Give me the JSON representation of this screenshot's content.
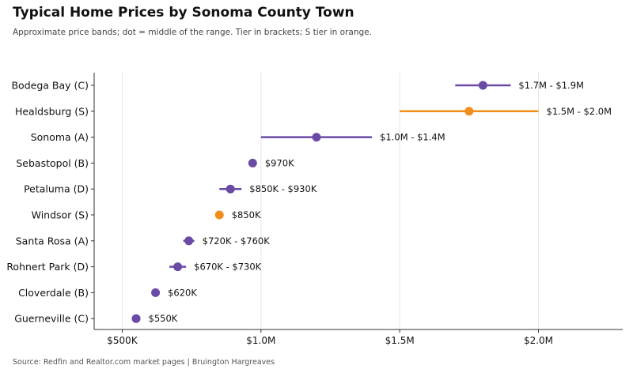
{
  "header": {
    "title": "Typical Home Prices by Sonoma County Town",
    "subtitle": "Approximate price bands; dot = middle of the range. Tier in brackets; S tier in orange."
  },
  "footer": {
    "source": "Source: Redfin and Realtor.com market pages | Bruington Hargreaves"
  },
  "colors": {
    "default": "#6a4aa5",
    "highlight": "#f28e1c",
    "grid": "#e6e6e6",
    "axis": "#333333"
  },
  "chart_data": {
    "type": "range-dot",
    "title": "Typical Home Prices by Sonoma County Town",
    "xlim": [
      400000,
      2300000
    ],
    "xticks": [
      500000,
      1000000,
      1500000,
      2000000
    ],
    "xtick_labels": [
      "$500K",
      "$1.0M",
      "$1.5M",
      "$2.0M"
    ],
    "grid": "vertical",
    "rows": [
      {
        "label": "Bodega Bay (C)",
        "low": 1700000,
        "high": 1900000,
        "mid": 1800000,
        "value_label": "$1.7M - $1.9M",
        "tier": "C"
      },
      {
        "label": "Healdsburg (S)",
        "low": 1500000,
        "high": 2000000,
        "mid": 1750000,
        "value_label": "$1.5M - $2.0M",
        "tier": "S"
      },
      {
        "label": "Sonoma (A)",
        "low": 1000000,
        "high": 1400000,
        "mid": 1200000,
        "value_label": "$1.0M - $1.4M",
        "tier": "A"
      },
      {
        "label": "Sebastopol (B)",
        "low": 970000,
        "high": 970000,
        "mid": 970000,
        "value_label": "$970K",
        "tier": "B"
      },
      {
        "label": "Petaluma (D)",
        "low": 850000,
        "high": 930000,
        "mid": 890000,
        "value_label": "$850K - $930K",
        "tier": "D"
      },
      {
        "label": "Windsor (S)",
        "low": 850000,
        "high": 850000,
        "mid": 850000,
        "value_label": "$850K",
        "tier": "S"
      },
      {
        "label": "Santa Rosa (A)",
        "low": 720000,
        "high": 760000,
        "mid": 740000,
        "value_label": "$720K - $760K",
        "tier": "A"
      },
      {
        "label": "Rohnert Park (D)",
        "low": 670000,
        "high": 730000,
        "mid": 700000,
        "value_label": "$670K - $730K",
        "tier": "D"
      },
      {
        "label": "Cloverdale (B)",
        "low": 620000,
        "high": 620000,
        "mid": 620000,
        "value_label": "$620K",
        "tier": "B"
      },
      {
        "label": "Guerneville (C)",
        "low": 550000,
        "high": 550000,
        "mid": 550000,
        "value_label": "$550K",
        "tier": "C"
      }
    ]
  }
}
